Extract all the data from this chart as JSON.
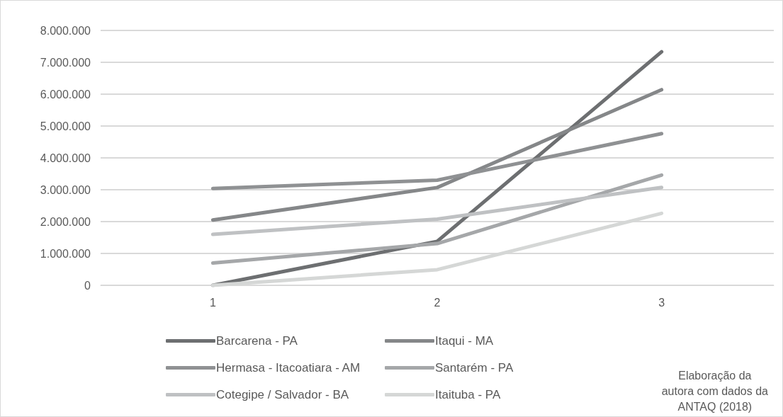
{
  "chart_data": {
    "type": "line",
    "categories": [
      "1",
      "2",
      "3"
    ],
    "series": [
      {
        "name": "Barcarena - PA",
        "color": "#6d6f71",
        "values": [
          0,
          1380000,
          7330000
        ]
      },
      {
        "name": "Itaqui - MA",
        "color": "#858789",
        "values": [
          2050000,
          3070000,
          6140000
        ]
      },
      {
        "name": "Hermasa - Itacoatiara - AM",
        "color": "#8f9193",
        "values": [
          3040000,
          3300000,
          4760000
        ]
      },
      {
        "name": "Santarém - PA",
        "color": "#a5a7a9",
        "values": [
          700000,
          1310000,
          3460000
        ]
      },
      {
        "name": "Cotegipe / Salvador - BA",
        "color": "#bfc1c3",
        "values": [
          1600000,
          2080000,
          3070000
        ]
      },
      {
        "name": "Itaituba - PA",
        "color": "#d5d7d6",
        "values": [
          0,
          490000,
          2260000
        ]
      }
    ],
    "ylim": [
      0,
      8000000
    ],
    "yticks": [
      {
        "value": 0,
        "label": "0"
      },
      {
        "value": 1000000,
        "label": "1.000.000"
      },
      {
        "value": 2000000,
        "label": "2.000.000"
      },
      {
        "value": 3000000,
        "label": "3.000.000"
      },
      {
        "value": 4000000,
        "label": "4.000.000"
      },
      {
        "value": 5000000,
        "label": "5.000.000"
      },
      {
        "value": 6000000,
        "label": "6.000.000"
      },
      {
        "value": 7000000,
        "label": "7.000.000"
      },
      {
        "value": 8000000,
        "label": "8.000.000"
      }
    ],
    "grid": "y",
    "legend": "bottom",
    "marker": "none",
    "line_style": "solid",
    "annotations": [
      "Elaboração da\nautora com dados da\nANTAQ (2018)"
    ]
  }
}
